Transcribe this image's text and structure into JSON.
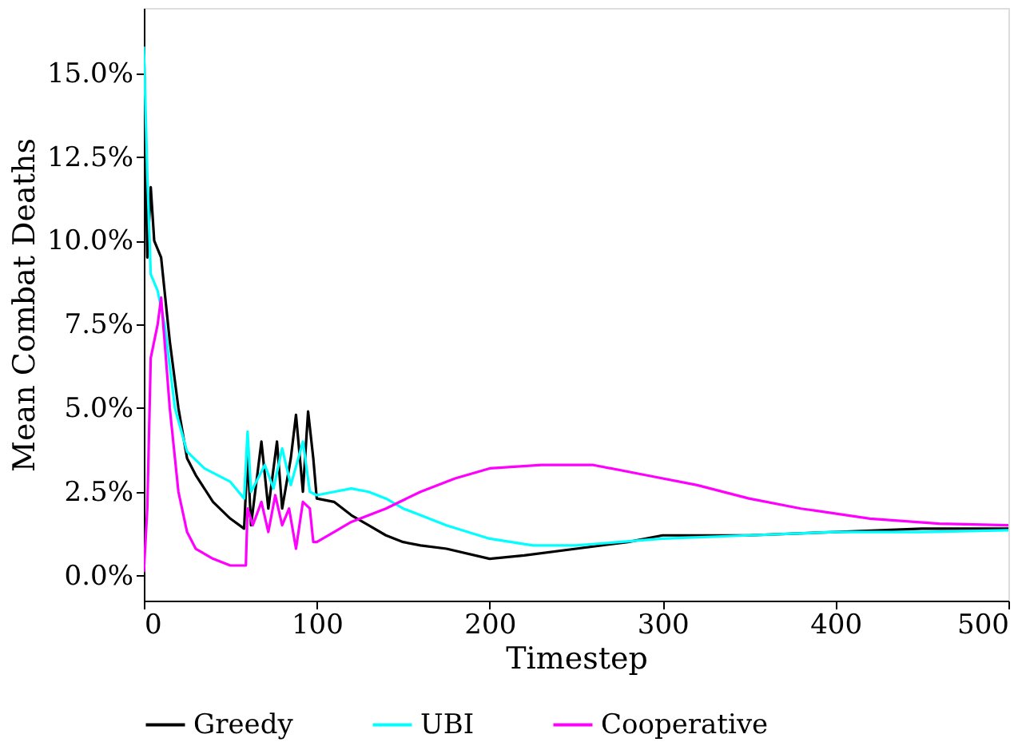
{
  "chart_data": {
    "type": "line",
    "xlabel": "Timestep",
    "ylabel": "Mean Combat Deaths",
    "xlim": [
      0,
      500
    ],
    "xticks": [
      0,
      100,
      200,
      300,
      400,
      500
    ],
    "ylim": [
      -0.75,
      16.95
    ],
    "yticks": [
      {
        "value": 0,
        "label": "0.0%"
      },
      {
        "value": 2.5,
        "label": "2.5%"
      },
      {
        "value": 5,
        "label": "5.0%"
      },
      {
        "value": 7.5,
        "label": "7.5%"
      },
      {
        "value": 10,
        "label": "10.0%"
      },
      {
        "value": 12.5,
        "label": "12.5%"
      },
      {
        "value": 15,
        "label": "15.0%"
      }
    ],
    "grid": false,
    "legend": "bottom",
    "line_style": "solid",
    "marker": "none",
    "series": [
      {
        "name": "Greedy",
        "color": "#000000",
        "x": [
          0,
          2,
          4,
          6,
          10,
          15,
          20,
          25,
          30,
          40,
          50,
          58,
          60,
          62,
          68,
          72,
          77,
          80,
          85,
          88,
          92,
          95,
          98,
          100,
          110,
          120,
          130,
          140,
          150,
          160,
          175,
          200,
          220,
          250,
          280,
          300,
          350,
          400,
          450,
          500
        ],
        "values": [
          16.0,
          9.5,
          11.6,
          10.0,
          9.5,
          7.0,
          5.0,
          3.5,
          3.0,
          2.2,
          1.7,
          1.4,
          3.6,
          1.5,
          4.0,
          2.0,
          4.0,
          2.0,
          3.5,
          4.8,
          2.5,
          4.9,
          3.5,
          2.3,
          2.2,
          1.8,
          1.5,
          1.2,
          1.0,
          0.9,
          0.8,
          0.5,
          0.6,
          0.8,
          1.0,
          1.2,
          1.2,
          1.3,
          1.4,
          1.4
        ]
      },
      {
        "name": "UBI",
        "color": "#00ffff",
        "x": [
          0,
          2,
          4,
          8,
          12,
          18,
          25,
          35,
          50,
          58,
          60,
          62,
          70,
          75,
          80,
          85,
          92,
          96,
          100,
          110,
          120,
          130,
          140,
          150,
          160,
          175,
          200,
          225,
          250,
          300,
          350,
          400,
          450,
          500
        ],
        "values": [
          15.8,
          12.0,
          9.0,
          8.5,
          7.5,
          5.0,
          3.7,
          3.2,
          2.8,
          2.3,
          4.3,
          2.5,
          3.3,
          2.6,
          3.8,
          2.7,
          4.0,
          2.5,
          2.4,
          2.5,
          2.6,
          2.5,
          2.3,
          2.0,
          1.8,
          1.5,
          1.1,
          0.9,
          0.9,
          1.1,
          1.2,
          1.3,
          1.3,
          1.35
        ]
      },
      {
        "name": "Cooperative",
        "color": "#ff00ff",
        "x": [
          0,
          2,
          4,
          8,
          10,
          12,
          15,
          20,
          25,
          30,
          40,
          50,
          59,
          60,
          63,
          68,
          72,
          76,
          80,
          84,
          88,
          92,
          96,
          98,
          100,
          110,
          120,
          140,
          160,
          180,
          200,
          230,
          260,
          290,
          320,
          350,
          380,
          420,
          460,
          500
        ],
        "values": [
          0.1,
          2.0,
          6.5,
          7.5,
          8.3,
          7.0,
          5.0,
          2.5,
          1.3,
          0.8,
          0.5,
          0.3,
          0.3,
          2.0,
          1.5,
          2.2,
          1.3,
          2.4,
          1.5,
          2.0,
          0.8,
          2.2,
          2.0,
          1.0,
          1.0,
          1.3,
          1.6,
          2.0,
          2.5,
          2.9,
          3.2,
          3.3,
          3.3,
          3.0,
          2.7,
          2.3,
          2.0,
          1.7,
          1.55,
          1.5
        ]
      }
    ]
  }
}
